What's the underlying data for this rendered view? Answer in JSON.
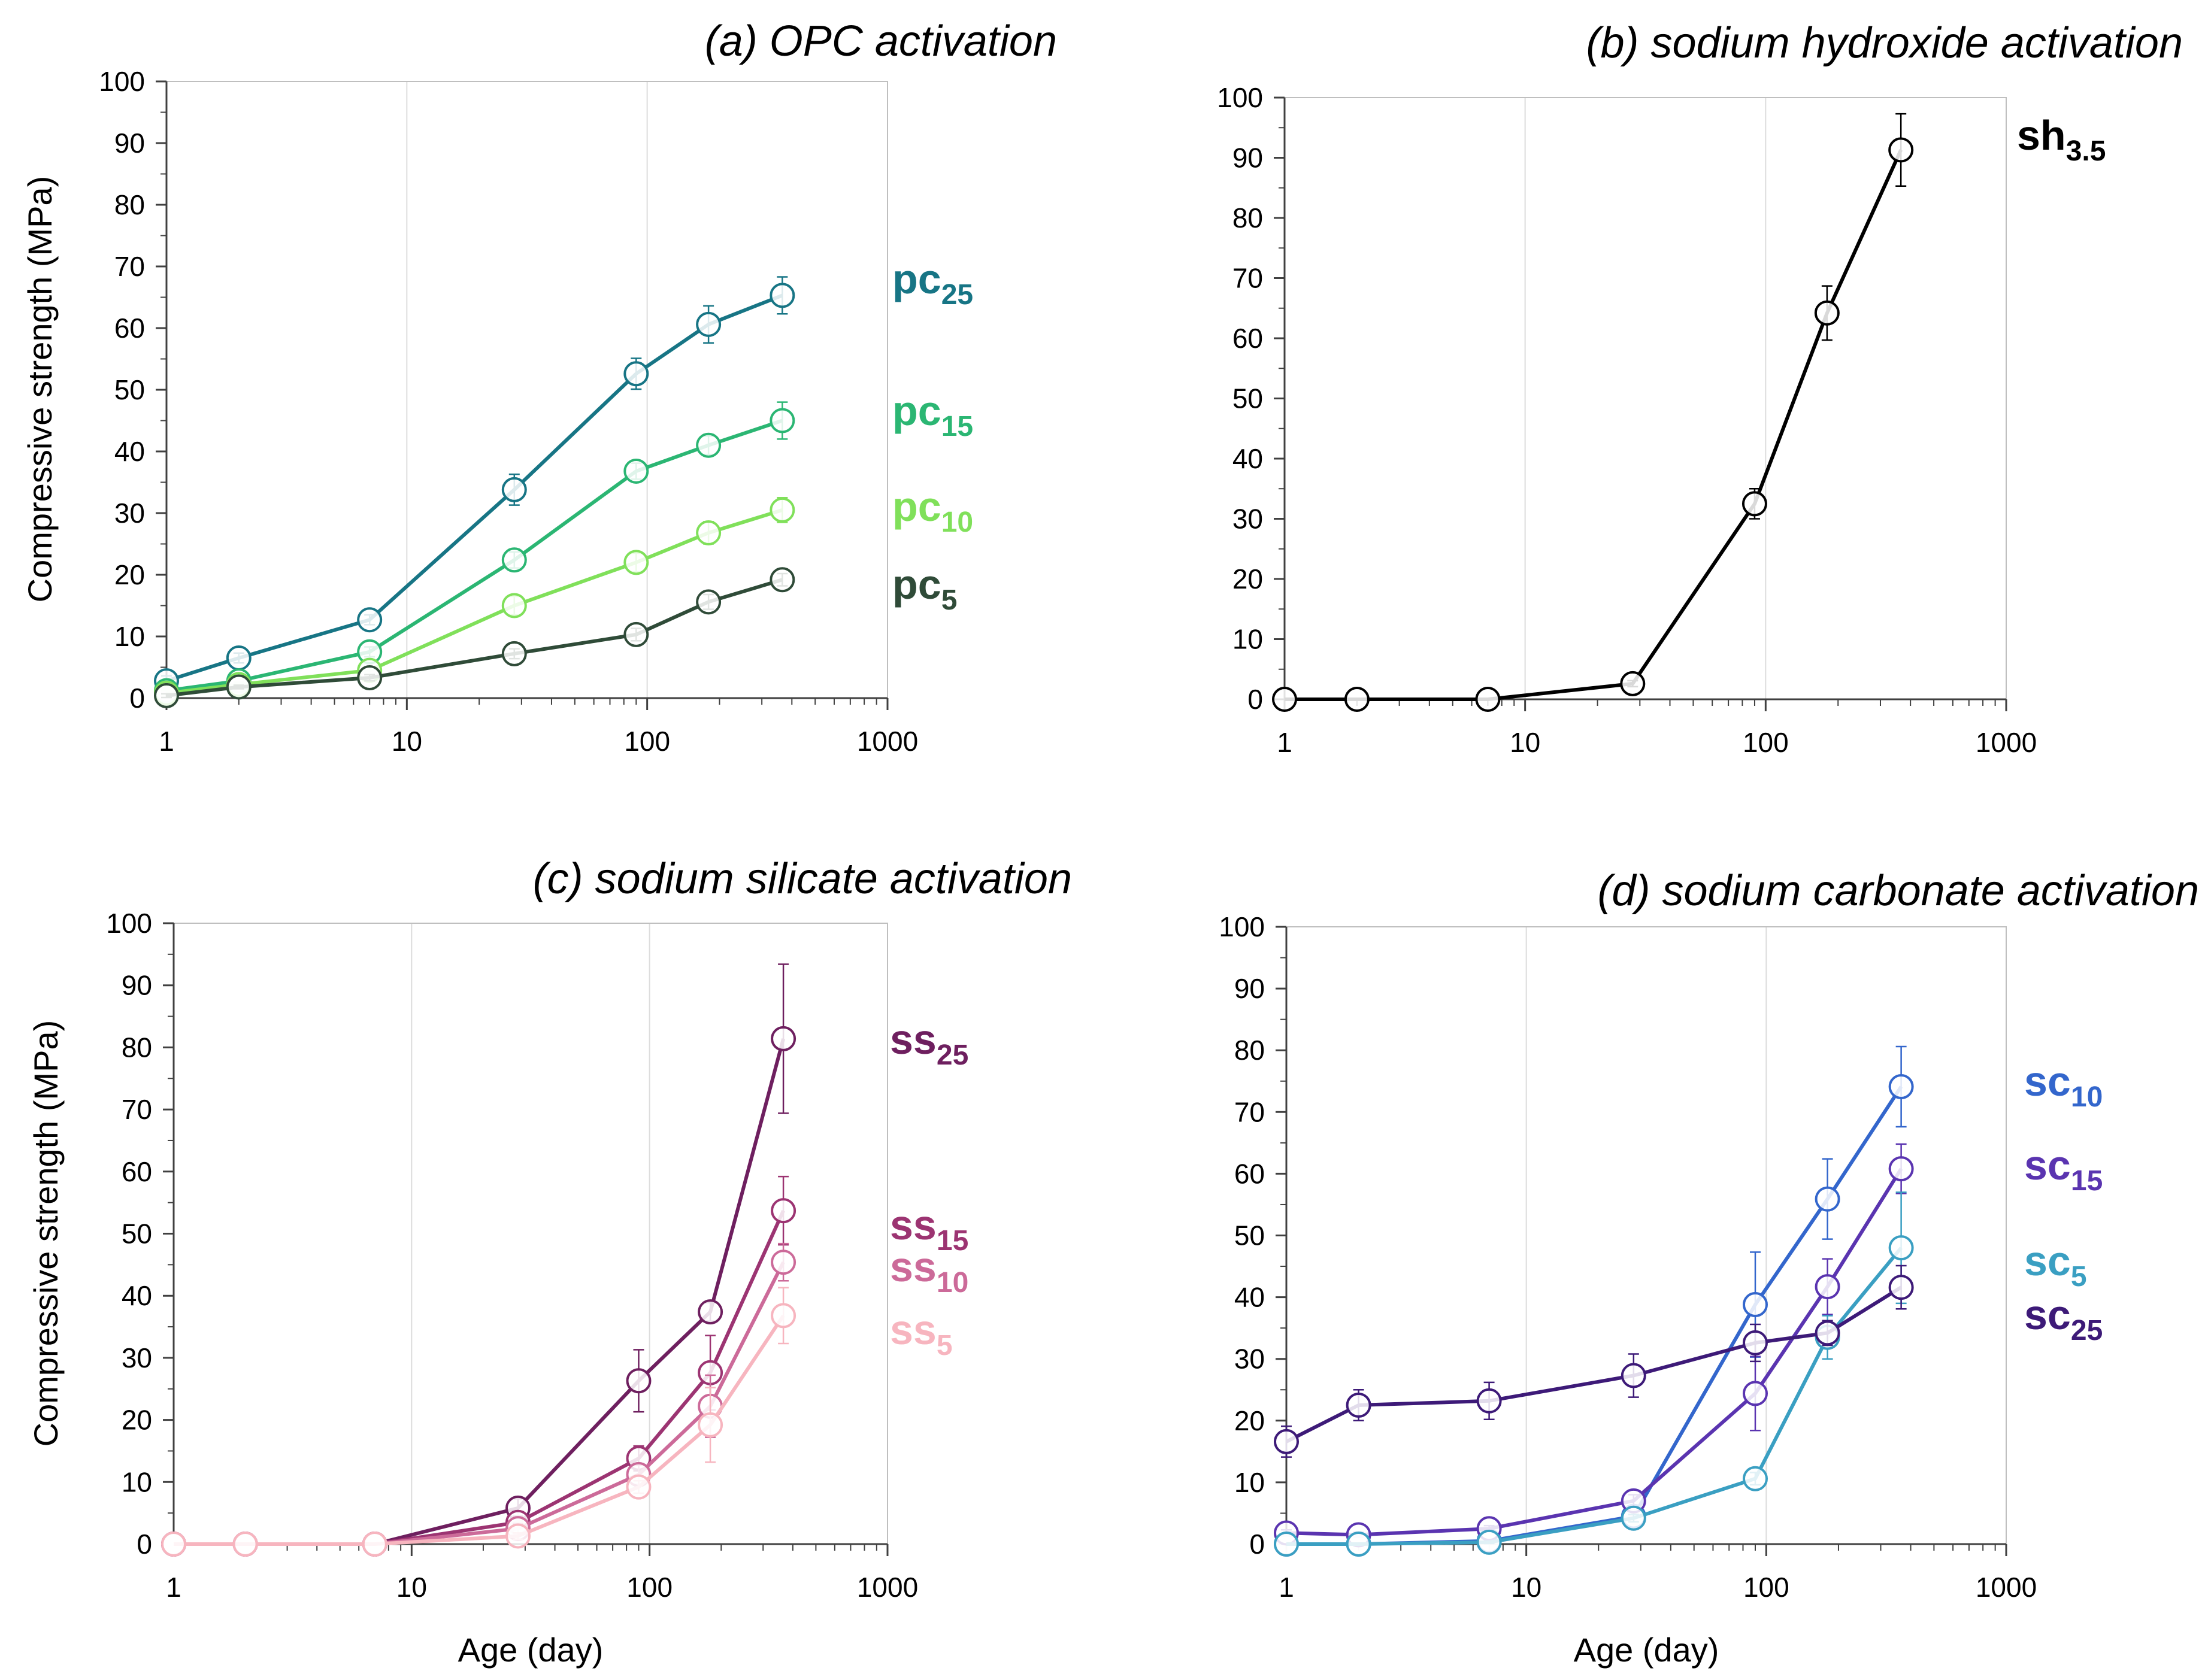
{
  "chart_data": [
    {
      "id": "a",
      "type": "line",
      "title": "(a) OPC activation",
      "xlabel": "",
      "ylabel": "Compressive strength (MPa)",
      "xscale": "log",
      "xlim": [
        1,
        1000
      ],
      "ylim": [
        0,
        100
      ],
      "xticks": [
        1,
        10,
        100,
        1000
      ],
      "xtick_labels": [
        "1",
        "10",
        "100",
        "1000"
      ],
      "yticks": [
        0,
        10,
        20,
        30,
        40,
        50,
        60,
        70,
        80,
        90,
        100
      ],
      "ytick_labels": [
        "0",
        "10",
        "20",
        "30",
        "40",
        "50",
        "60",
        "70",
        "80",
        "90",
        "100"
      ],
      "x": [
        1,
        2,
        7,
        28,
        90,
        180,
        365
      ],
      "series": [
        {
          "name": "pc25",
          "label_main": "pc",
          "label_sub": "25",
          "color": "#177585",
          "values": [
            2.8,
            6.5,
            12.7,
            33.8,
            52.6,
            60.6,
            65.3
          ],
          "errors": [
            0.8,
            0.8,
            0.8,
            2.5,
            2.5,
            3.0,
            3.0
          ]
        },
        {
          "name": "pc15",
          "label_main": "pc",
          "label_sub": "15",
          "color": "#2BB673",
          "values": [
            1.2,
            2.8,
            7.5,
            22.4,
            36.8,
            41.0,
            45.0
          ],
          "errors": [
            0.5,
            0.5,
            0.8,
            1.3,
            1.3,
            1.5,
            3.0
          ]
        },
        {
          "name": "pc10",
          "label_main": "pc",
          "label_sub": "10",
          "color": "#80E05A",
          "values": [
            0.8,
            2.2,
            4.5,
            15.0,
            22.0,
            26.8,
            30.5
          ],
          "errors": [
            0.4,
            0.4,
            0.5,
            1.5,
            1.5,
            1.8,
            2.0
          ]
        },
        {
          "name": "pc5",
          "label_main": "pc",
          "label_sub": "5",
          "color": "#2F4B38",
          "values": [
            0.4,
            1.8,
            3.3,
            7.2,
            10.3,
            15.6,
            19.2
          ],
          "errors": [
            0.3,
            0.3,
            0.5,
            0.8,
            1.0,
            1.2,
            1.0
          ]
        }
      ]
    },
    {
      "id": "b",
      "type": "line",
      "title": "(b) sodium hydroxide activation",
      "xlabel": "",
      "ylabel": "",
      "xscale": "log",
      "xlim": [
        1,
        1000
      ],
      "ylim": [
        0,
        100
      ],
      "xticks": [
        1,
        10,
        100,
        1000
      ],
      "xtick_labels": [
        "1",
        "10",
        "100",
        "1000"
      ],
      "yticks": [
        0,
        10,
        20,
        30,
        40,
        50,
        60,
        70,
        80,
        90,
        100
      ],
      "ytick_labels": [
        "0",
        "10",
        "20",
        "30",
        "40",
        "50",
        "60",
        "70",
        "80",
        "90",
        "100"
      ],
      "x": [
        1,
        2,
        7,
        28,
        90,
        180,
        365
      ],
      "series": [
        {
          "name": "sh3.5",
          "label_main": "sh",
          "label_sub": "3.5",
          "color": "#000000",
          "values": [
            0,
            0,
            0,
            2.6,
            32.5,
            64.2,
            91.3
          ],
          "errors": [
            0,
            0,
            0,
            0.5,
            2.5,
            4.5,
            6.0
          ]
        }
      ]
    },
    {
      "id": "c",
      "type": "line",
      "title": "(c) sodium silicate activation",
      "xlabel": "Age (day)",
      "ylabel": "Compressive strength (MPa)",
      "xscale": "log",
      "xlim": [
        1,
        1000
      ],
      "ylim": [
        0,
        100
      ],
      "xticks": [
        1,
        10,
        100,
        1000
      ],
      "xtick_labels": [
        "1",
        "10",
        "100",
        "1000"
      ],
      "yticks": [
        0,
        10,
        20,
        30,
        40,
        50,
        60,
        70,
        80,
        90,
        100
      ],
      "ytick_labels": [
        "0",
        "10",
        "20",
        "30",
        "40",
        "50",
        "60",
        "70",
        "80",
        "90",
        "100"
      ],
      "x": [
        1,
        2,
        7,
        28,
        90,
        180,
        365
      ],
      "series": [
        {
          "name": "ss25",
          "label_main": "ss",
          "label_sub": "25",
          "color": "#6E1F5F",
          "values": [
            0,
            0,
            0,
            5.8,
            26.3,
            37.4,
            81.4
          ],
          "errors": [
            0,
            0,
            0,
            1.5,
            5.0,
            1.5,
            12.0
          ]
        },
        {
          "name": "ss15",
          "label_main": "ss",
          "label_sub": "15",
          "color": "#9C3472",
          "values": [
            0,
            0,
            0,
            3.5,
            13.8,
            27.6,
            53.7
          ],
          "errors": [
            0,
            0,
            0,
            1.0,
            2.0,
            6.0,
            5.5
          ]
        },
        {
          "name": "ss10",
          "label_main": "ss",
          "label_sub": "10",
          "color": "#CC6A99",
          "values": [
            0,
            0,
            0,
            2.5,
            11.2,
            22.2,
            45.4
          ],
          "errors": [
            0,
            0,
            0,
            0.8,
            1.5,
            5.0,
            3.0
          ]
        },
        {
          "name": "ss5",
          "label_main": "ss",
          "label_sub": "5",
          "color": "#F7B5BF",
          "values": [
            0,
            0,
            0,
            1.3,
            9.2,
            19.2,
            36.8
          ],
          "errors": [
            0,
            0,
            0,
            0.5,
            1.0,
            6.0,
            4.5
          ]
        }
      ]
    },
    {
      "id": "d",
      "type": "line",
      "title": "(d) sodium carbonate activation",
      "xlabel": "Age (day)",
      "ylabel": "",
      "xscale": "log",
      "xlim": [
        1,
        1000
      ],
      "ylim": [
        0,
        100
      ],
      "xticks": [
        1,
        10,
        100,
        1000
      ],
      "xtick_labels": [
        "1",
        "10",
        "100",
        "1000"
      ],
      "yticks": [
        0,
        10,
        20,
        30,
        40,
        50,
        60,
        70,
        80,
        90,
        100
      ],
      "ytick_labels": [
        "0",
        "10",
        "20",
        "30",
        "40",
        "50",
        "60",
        "70",
        "80",
        "90",
        "100"
      ],
      "x": [
        1,
        2,
        7,
        28,
        90,
        180,
        365
      ],
      "series": [
        {
          "name": "sc10",
          "label_main": "sc",
          "label_sub": "10",
          "color": "#3366CC",
          "values": [
            0,
            0,
            0.5,
            4.5,
            38.8,
            55.9,
            74.1
          ],
          "errors": [
            0,
            0,
            0.3,
            0.8,
            8.5,
            6.5,
            6.5
          ]
        },
        {
          "name": "sc15",
          "label_main": "sc",
          "label_sub": "15",
          "color": "#5A34B0",
          "values": [
            1.8,
            1.5,
            2.5,
            7.0,
            24.4,
            41.7,
            60.8
          ],
          "errors": [
            0.5,
            0.4,
            0.5,
            1.0,
            6.0,
            4.5,
            4.0
          ]
        },
        {
          "name": "sc5",
          "label_main": "sc",
          "label_sub": "5",
          "color": "#3A9FC2",
          "values": [
            0,
            0,
            0.3,
            4.2,
            10.6,
            33.5,
            48.0
          ],
          "errors": [
            0,
            0,
            0.2,
            0.6,
            1.0,
            3.5,
            9.0
          ]
        },
        {
          "name": "sc25",
          "label_main": "sc",
          "label_sub": "25",
          "color": "#3D1A78",
          "values": [
            16.6,
            22.5,
            23.2,
            27.3,
            32.6,
            34.2,
            41.6
          ],
          "errors": [
            2.5,
            2.5,
            3.0,
            3.5,
            3.0,
            2.0,
            3.5
          ]
        }
      ]
    }
  ]
}
